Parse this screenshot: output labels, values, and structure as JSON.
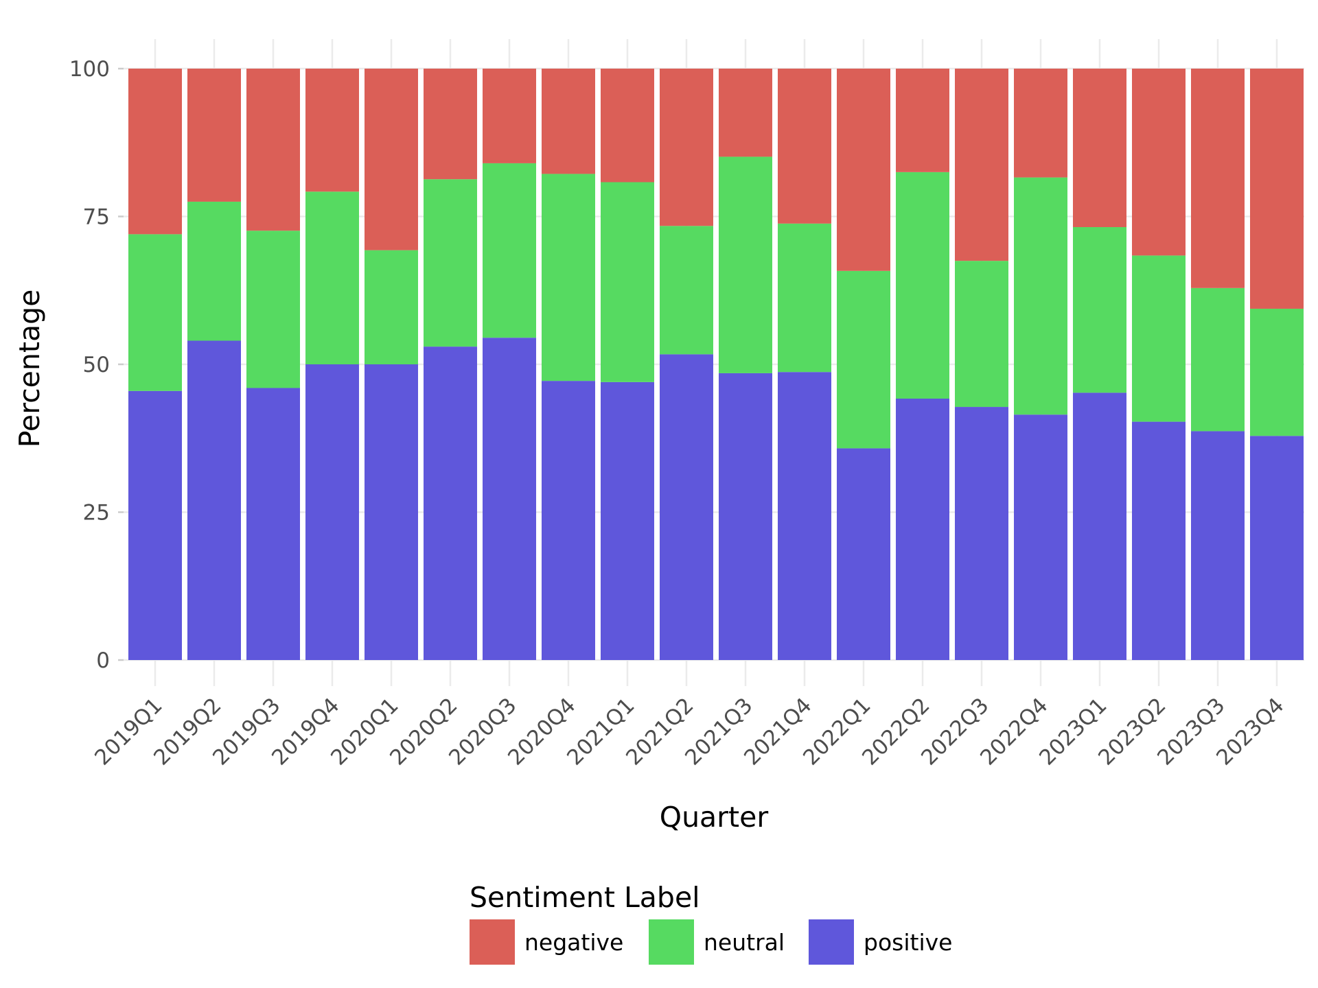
{
  "chart_data": {
    "type": "bar",
    "stacked": true,
    "xlabel": "Quarter",
    "ylabel": "Percentage",
    "ylim": [
      0,
      100
    ],
    "yticks": [
      0,
      25,
      50,
      75,
      100
    ],
    "categories": [
      "2019Q1",
      "2019Q2",
      "2019Q3",
      "2019Q4",
      "2020Q1",
      "2020Q2",
      "2020Q3",
      "2020Q4",
      "2021Q1",
      "2021Q2",
      "2021Q3",
      "2021Q4",
      "2022Q1",
      "2022Q2",
      "2022Q3",
      "2022Q4",
      "2023Q1",
      "2023Q2",
      "2023Q3",
      "2023Q4"
    ],
    "series": [
      {
        "name": "positive",
        "color": "#5f57db",
        "values": [
          45.5,
          54.0,
          46.0,
          50.0,
          50.0,
          53.0,
          54.5,
          47.2,
          47.0,
          51.7,
          48.5,
          48.7,
          35.8,
          44.2,
          42.8,
          41.5,
          45.2,
          40.3,
          38.7,
          37.9
        ]
      },
      {
        "name": "neutral",
        "color": "#56da61",
        "values": [
          26.5,
          23.5,
          26.6,
          29.2,
          19.3,
          28.3,
          29.5,
          35.0,
          33.8,
          21.7,
          36.6,
          25.1,
          30.0,
          38.3,
          24.7,
          40.1,
          28.0,
          28.1,
          24.2,
          21.5
        ]
      },
      {
        "name": "negative",
        "color": "#db5f57",
        "values": [
          28.0,
          22.5,
          27.4,
          20.8,
          30.7,
          18.7,
          16.0,
          17.8,
          19.2,
          26.6,
          14.9,
          26.2,
          34.2,
          17.5,
          32.5,
          18.4,
          26.8,
          31.6,
          37.1,
          40.6
        ]
      }
    ],
    "stack_order_bottom_to_top": [
      "positive",
      "neutral",
      "negative"
    ],
    "legend": {
      "title": "Sentiment Label",
      "position": "bottom",
      "entries": [
        "negative",
        "neutral",
        "positive"
      ]
    },
    "grid": true,
    "grid_color": "#ebebeb",
    "background": "#ffffff"
  }
}
